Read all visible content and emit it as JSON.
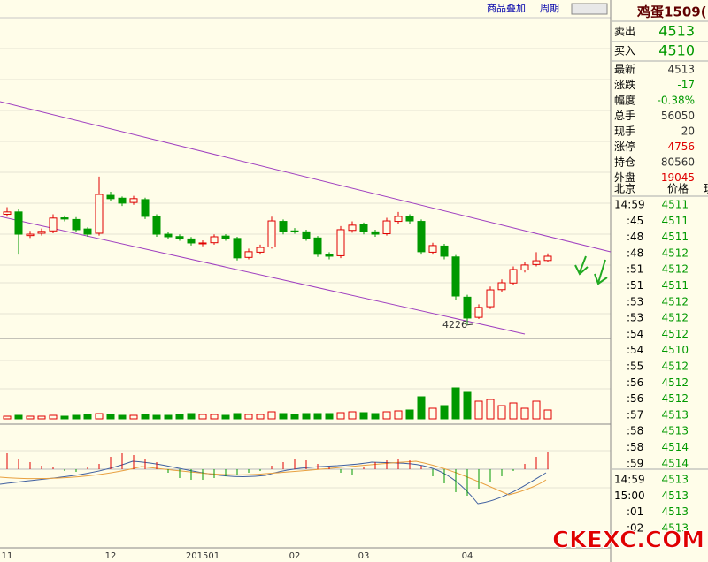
{
  "toolbar": {
    "overlay": "商品叠加",
    "period": "周期"
  },
  "chart_data": {
    "type": "candlestick",
    "x": [
      "11",
      null,
      null,
      null,
      null,
      null,
      null,
      null,
      null,
      "12",
      null,
      null,
      null,
      null,
      null,
      null,
      null,
      "201501",
      null,
      null,
      null,
      null,
      null,
      null,
      null,
      "02",
      null,
      null,
      null,
      null,
      null,
      "03",
      null,
      null,
      null,
      null,
      null,
      null,
      null,
      null,
      "04",
      null,
      null,
      null,
      null,
      null,
      null,
      null
    ],
    "open": [
      4690,
      4700,
      4600,
      4610,
      4620,
      4675,
      4668,
      4628,
      4610,
      4770,
      4758,
      4740,
      4752,
      4680,
      4606,
      4596,
      4586,
      4566,
      4570,
      4598,
      4588,
      4508,
      4530,
      4552,
      4660,
      4620,
      4616,
      4590,
      4520,
      4515,
      4622,
      4646,
      4616,
      4608,
      4660,
      4680,
      4660,
      4530,
      4556,
      4510,
      4340,
      4255,
      4300,
      4372,
      4400,
      4455,
      4478,
      4495
    ],
    "high": [
      4720,
      4712,
      4620,
      4630,
      4690,
      4685,
      4678,
      4635,
      4849,
      4785,
      4765,
      4768,
      4760,
      4690,
      4615,
      4605,
      4594,
      4580,
      4605,
      4606,
      4595,
      4545,
      4562,
      4680,
      4668,
      4632,
      4625,
      4598,
      4530,
      4640,
      4660,
      4655,
      4625,
      4675,
      4700,
      4690,
      4668,
      4570,
      4565,
      4518,
      4350,
      4310,
      4385,
      4415,
      4470,
      4490,
      4530,
      4525
    ],
    "low": [
      4680,
      4520,
      4590,
      4600,
      4610,
      4660,
      4615,
      4595,
      4600,
      4745,
      4725,
      4730,
      4670,
      4595,
      4585,
      4578,
      4558,
      4555,
      4562,
      4578,
      4495,
      4500,
      4520,
      4545,
      4605,
      4608,
      4578,
      4510,
      4500,
      4505,
      4612,
      4605,
      4595,
      4600,
      4650,
      4650,
      4520,
      4520,
      4500,
      4330,
      4226,
      4248,
      4290,
      4360,
      4390,
      4445,
      4470,
      4490
    ],
    "close": [
      4700,
      4606,
      4606,
      4618,
      4674,
      4670,
      4625,
      4606,
      4774,
      4756,
      4737,
      4756,
      4681,
      4606,
      4595,
      4588,
      4569,
      4569,
      4595,
      4588,
      4506,
      4532,
      4550,
      4662,
      4618,
      4618,
      4588,
      4521,
      4513,
      4625,
      4644,
      4618,
      4606,
      4662,
      4681,
      4662,
      4532,
      4558,
      4513,
      4345,
      4252,
      4297,
      4371,
      4401,
      4457,
      4476,
      4494,
      4513
    ],
    "ylim": [
      4166,
      5520
    ],
    "up_color": "#e00000",
    "down_color": "#009900",
    "volume": [
      3,
      4,
      3,
      3,
      4,
      3,
      4,
      5,
      6,
      5,
      4,
      4,
      5,
      4,
      4,
      5,
      6,
      5,
      5,
      4,
      6,
      5,
      5,
      8,
      6,
      5,
      6,
      6,
      6,
      7,
      8,
      7,
      6,
      8,
      9,
      10,
      25,
      12,
      15,
      35,
      30,
      20,
      22,
      15,
      18,
      12,
      20,
      10
    ],
    "volume_ylim": [
      0,
      80
    ],
    "macd": [
      18,
      12,
      8,
      4,
      2,
      -2,
      -3,
      2,
      6,
      14,
      18,
      16,
      12,
      8,
      -4,
      -10,
      -12,
      -12,
      -10,
      -8,
      -6,
      -4,
      -2,
      4,
      8,
      12,
      10,
      6,
      2,
      -4,
      -6,
      2,
      8,
      10,
      12,
      10,
      4,
      -8,
      -16,
      -26,
      -30,
      -22,
      -14,
      -8,
      -2,
      6,
      14,
      20
    ],
    "macd_ylim": [
      -40,
      40
    ]
  },
  "quote_panel": {
    "title": "鸡蛋1509(",
    "sell": {
      "label": "卖出",
      "value": "4513"
    },
    "buy": {
      "label": "买入",
      "value": "4510"
    },
    "rows": [
      [
        "最新",
        "4513"
      ],
      [
        "涨跌",
        "-17"
      ],
      [
        "幅度",
        "-0.38%"
      ],
      [
        "总手",
        "56050"
      ],
      [
        "现手",
        "20"
      ],
      [
        "涨停",
        "4756"
      ],
      [
        "持仓",
        "80560"
      ],
      [
        "外盘",
        "19045"
      ]
    ],
    "tick_header": [
      "北京",
      "价格",
      "现"
    ],
    "ticks": [
      [
        "14:59",
        "4511"
      ],
      [
        ":45",
        "4511"
      ],
      [
        ":48",
        "4511"
      ],
      [
        ":48",
        "4512"
      ],
      [
        ":51",
        "4512"
      ],
      [
        ":51",
        "4511"
      ],
      [
        ":53",
        "4512"
      ],
      [
        ":53",
        "4512"
      ],
      [
        ":54",
        "4512"
      ],
      [
        ":54",
        "4510"
      ],
      [
        ":55",
        "4512"
      ],
      [
        ":56",
        "4512"
      ],
      [
        ":56",
        "4512"
      ],
      [
        ":57",
        "4513"
      ],
      [
        ":58",
        "4513"
      ],
      [
        ":58",
        "4514"
      ],
      [
        ":59",
        "4514"
      ],
      [
        "14:59",
        "4513"
      ],
      [
        "15:00",
        "4513"
      ],
      [
        ":01",
        "4513"
      ],
      [
        ":02",
        "4513"
      ]
    ]
  },
  "watermark": "CKEXC.COM"
}
